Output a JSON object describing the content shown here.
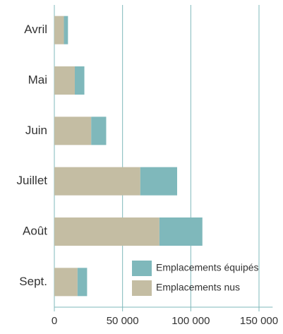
{
  "chart_data": {
    "type": "stacked_barh",
    "categories": [
      "Avril",
      "Mai",
      "Juin",
      "Juillet",
      "Août",
      "Sept."
    ],
    "series": [
      {
        "name": "Emplacements nus",
        "color": "#c4bda3",
        "values": [
          7000,
          15000,
          27000,
          63000,
          77000,
          17000
        ]
      },
      {
        "name": "Emplacements équipés",
        "color": "#7fb8bb",
        "values": [
          3000,
          7000,
          11000,
          27000,
          31500,
          7000
        ]
      }
    ],
    "xlim": [
      0,
      160000
    ],
    "xticks": [
      0,
      {
        "value": 50000,
        "label": "50 000"
      },
      {
        "value": 100000,
        "label": "100 000"
      },
      {
        "value": 150000,
        "label": "150 000"
      }
    ],
    "grid": true,
    "legend": "lower right"
  }
}
